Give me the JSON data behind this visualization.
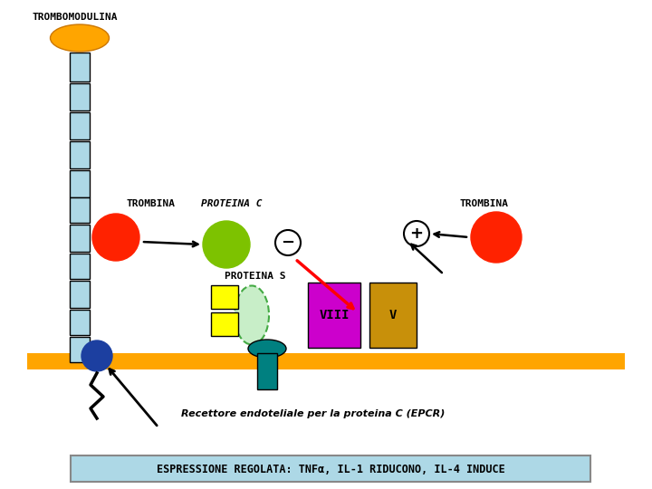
{
  "bg_color": "#ffffff",
  "membrane_color": "#FFA500",
  "trombomodulina_label": "TROMBOMODULINA",
  "trombina_label": "TROMBINA",
  "proteina_c_label": "PROTEINA C",
  "proteina_s_label": "PROTEINA S",
  "viii_label": "VIII",
  "v_label": "V",
  "recettore_label": "Recettore endoteliale per la proteina C (EPCR)",
  "espressione_label": "ESPRESSIONE REGOLATA: TNFα, IL-1 RIDUCONO, IL-4 INDUCE",
  "light_blue": "#ADD8E6",
  "orange": "#FFA500",
  "red": "#FF2200",
  "green": "#7DC200",
  "yellow": "#FFFF00",
  "teal": "#008080",
  "navy": "#1C3FA0",
  "magenta": "#CC00CC",
  "gold": "#C8900A",
  "light_green": "#C8EEC8",
  "box_bg": "#ADD8E6"
}
